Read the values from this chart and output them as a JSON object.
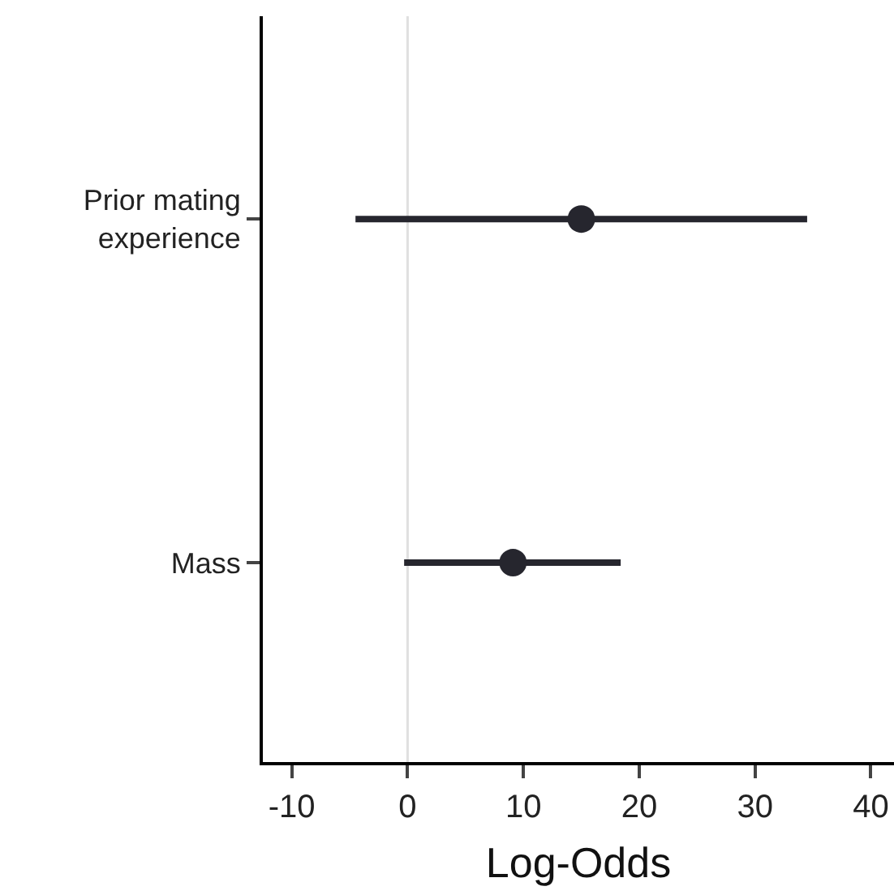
{
  "chart_data": {
    "type": "scatter",
    "orientation": "horizontal",
    "xlabel": "Log-Odds",
    "categories": [
      "Prior mating\nexperience",
      "Mass"
    ],
    "values": [
      15.0,
      9.1
    ],
    "errors": [
      [
        -4.5,
        34.5
      ],
      [
        -0.3,
        18.4
      ]
    ],
    "color": "#26262e",
    "marker": "circle",
    "xlim": [
      -12.5,
      42
    ],
    "xticks": [
      -10,
      0,
      10,
      20,
      30,
      40
    ],
    "ref_lines": [
      {
        "axis": "x",
        "value": 0,
        "color": "#e0e0e0"
      }
    ],
    "grid": false,
    "legend": false
  }
}
